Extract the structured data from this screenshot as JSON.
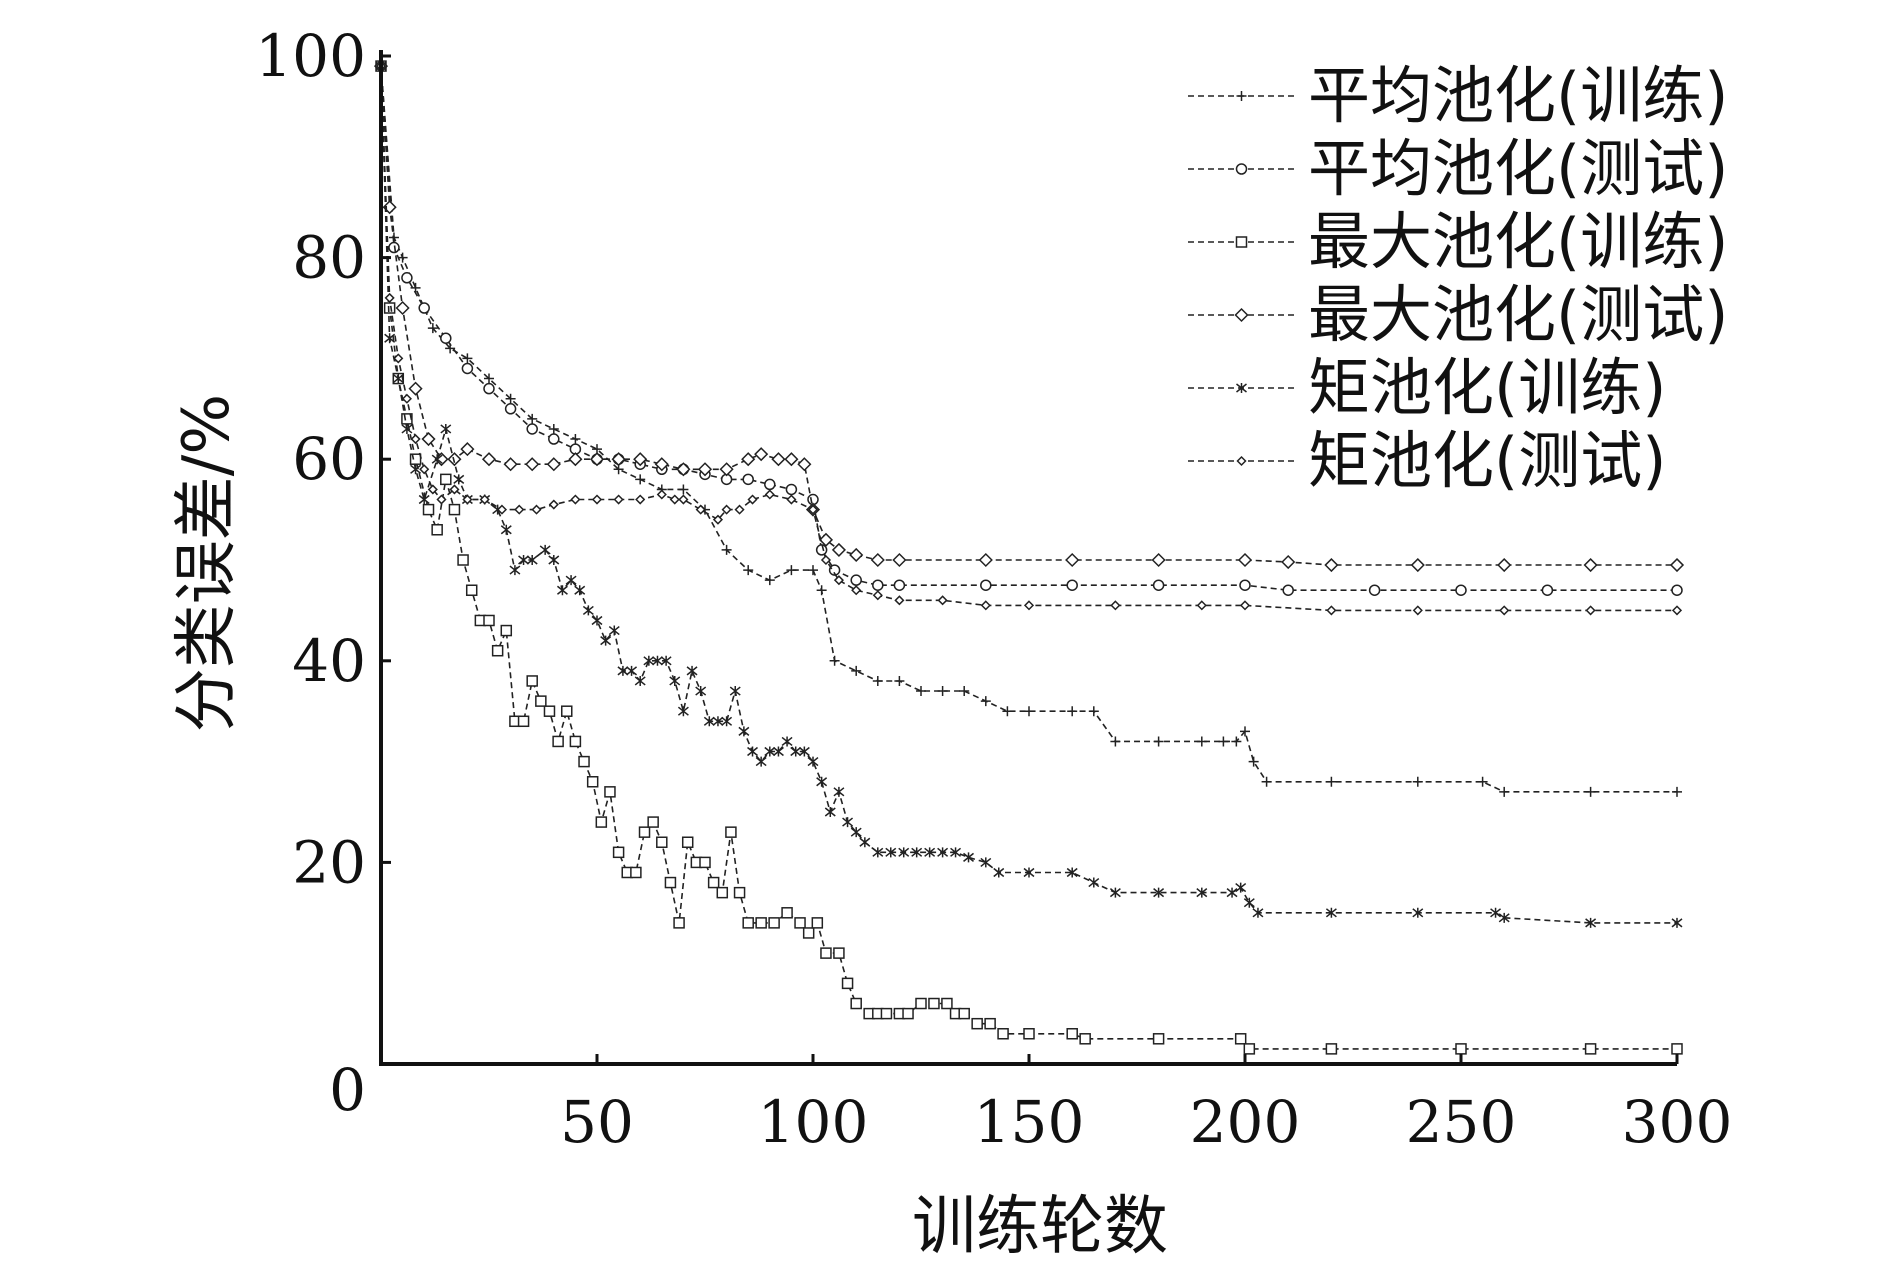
{
  "chart_data": {
    "type": "line",
    "title": "",
    "xlabel": "训练轮数",
    "ylabel": "分类误差/%",
    "xlim": [
      0,
      300
    ],
    "ylim": [
      0,
      100
    ],
    "xticks": [
      50,
      100,
      150,
      200,
      250,
      300
    ],
    "yticks": [
      0,
      20,
      40,
      60,
      80,
      100
    ],
    "xtick_labels": [
      "50",
      "100",
      "150",
      "200",
      "250",
      "300"
    ],
    "ytick_labels": [
      "0",
      "20",
      "40",
      "60",
      "80",
      "100"
    ],
    "grid": false,
    "legend_position": "top-right",
    "series": [
      {
        "name": "平均池化(训练)",
        "marker": "plus",
        "points": [
          [
            0,
            99
          ],
          [
            3,
            82
          ],
          [
            5,
            80
          ],
          [
            8,
            77
          ],
          [
            12,
            73
          ],
          [
            16,
            71
          ],
          [
            20,
            70
          ],
          [
            25,
            68
          ],
          [
            30,
            66
          ],
          [
            35,
            64
          ],
          [
            40,
            63
          ],
          [
            45,
            62
          ],
          [
            50,
            61
          ],
          [
            55,
            59
          ],
          [
            60,
            58
          ],
          [
            65,
            57
          ],
          [
            70,
            57
          ],
          [
            75,
            55
          ],
          [
            80,
            51
          ],
          [
            85,
            49
          ],
          [
            90,
            48
          ],
          [
            95,
            49
          ],
          [
            100,
            49
          ],
          [
            102,
            47
          ],
          [
            105,
            40
          ],
          [
            110,
            39
          ],
          [
            115,
            38
          ],
          [
            120,
            38
          ],
          [
            125,
            37
          ],
          [
            130,
            37
          ],
          [
            135,
            37
          ],
          [
            140,
            36
          ],
          [
            145,
            35
          ],
          [
            150,
            35
          ],
          [
            160,
            35
          ],
          [
            165,
            35
          ],
          [
            170,
            32
          ],
          [
            180,
            32
          ],
          [
            190,
            32
          ],
          [
            195,
            32
          ],
          [
            198,
            32
          ],
          [
            200,
            33
          ],
          [
            202,
            30
          ],
          [
            205,
            28
          ],
          [
            220,
            28
          ],
          [
            240,
            28
          ],
          [
            255,
            28
          ],
          [
            260,
            27
          ],
          [
            280,
            27
          ],
          [
            300,
            27
          ]
        ]
      },
      {
        "name": "平均池化(测试)",
        "marker": "circle",
        "points": [
          [
            0,
            99
          ],
          [
            3,
            81
          ],
          [
            6,
            78
          ],
          [
            10,
            75
          ],
          [
            15,
            72
          ],
          [
            20,
            69
          ],
          [
            25,
            67
          ],
          [
            30,
            65
          ],
          [
            35,
            63
          ],
          [
            40,
            62
          ],
          [
            45,
            61
          ],
          [
            50,
            60
          ],
          [
            55,
            60
          ],
          [
            60,
            59.5
          ],
          [
            65,
            59
          ],
          [
            70,
            59
          ],
          [
            75,
            58.5
          ],
          [
            80,
            58
          ],
          [
            85,
            58
          ],
          [
            90,
            57.5
          ],
          [
            95,
            57
          ],
          [
            100,
            56
          ],
          [
            102,
            51
          ],
          [
            105,
            49
          ],
          [
            110,
            48
          ],
          [
            115,
            47.5
          ],
          [
            120,
            47.5
          ],
          [
            140,
            47.5
          ],
          [
            160,
            47.5
          ],
          [
            180,
            47.5
          ],
          [
            200,
            47.5
          ],
          [
            210,
            47
          ],
          [
            230,
            47
          ],
          [
            250,
            47
          ],
          [
            270,
            47
          ],
          [
            300,
            47
          ]
        ]
      },
      {
        "name": "最大池化(训练)",
        "marker": "square",
        "points": [
          [
            0,
            99
          ],
          [
            2,
            75
          ],
          [
            4,
            68
          ],
          [
            6,
            64
          ],
          [
            8,
            60
          ],
          [
            11,
            55
          ],
          [
            13,
            53
          ],
          [
            15,
            58
          ],
          [
            17,
            55
          ],
          [
            19,
            50
          ],
          [
            21,
            47
          ],
          [
            23,
            44
          ],
          [
            25,
            44
          ],
          [
            27,
            41
          ],
          [
            29,
            43
          ],
          [
            31,
            34
          ],
          [
            33,
            34
          ],
          [
            35,
            38
          ],
          [
            37,
            36
          ],
          [
            39,
            35
          ],
          [
            41,
            32
          ],
          [
            43,
            35
          ],
          [
            45,
            32
          ],
          [
            47,
            30
          ],
          [
            49,
            28
          ],
          [
            51,
            24
          ],
          [
            53,
            27
          ],
          [
            55,
            21
          ],
          [
            57,
            19
          ],
          [
            59,
            19
          ],
          [
            61,
            23
          ],
          [
            63,
            24
          ],
          [
            65,
            22
          ],
          [
            67,
            18
          ],
          [
            69,
            14
          ],
          [
            71,
            22
          ],
          [
            73,
            20
          ],
          [
            75,
            20
          ],
          [
            77,
            18
          ],
          [
            79,
            17
          ],
          [
            81,
            23
          ],
          [
            83,
            17
          ],
          [
            85,
            14
          ],
          [
            88,
            14
          ],
          [
            91,
            14
          ],
          [
            94,
            15
          ],
          [
            97,
            14
          ],
          [
            99,
            13
          ],
          [
            101,
            14
          ],
          [
            103,
            11
          ],
          [
            106,
            11
          ],
          [
            108,
            8
          ],
          [
            110,
            6
          ],
          [
            113,
            5
          ],
          [
            115,
            5
          ],
          [
            117,
            5
          ],
          [
            120,
            5
          ],
          [
            122,
            5
          ],
          [
            125,
            6
          ],
          [
            128,
            6
          ],
          [
            131,
            6
          ],
          [
            133,
            5
          ],
          [
            135,
            5
          ],
          [
            138,
            4
          ],
          [
            141,
            4
          ],
          [
            144,
            3
          ],
          [
            150,
            3
          ],
          [
            160,
            3
          ],
          [
            163,
            2.5
          ],
          [
            180,
            2.5
          ],
          [
            199,
            2.5
          ],
          [
            201,
            1.5
          ],
          [
            220,
            1.5
          ],
          [
            250,
            1.5
          ],
          [
            280,
            1.5
          ],
          [
            300,
            1.5
          ]
        ]
      },
      {
        "name": "最大池化(测试)",
        "marker": "diamond",
        "points": [
          [
            0,
            99
          ],
          [
            2,
            85
          ],
          [
            5,
            75
          ],
          [
            8,
            67
          ],
          [
            11,
            62
          ],
          [
            14,
            60
          ],
          [
            17,
            60
          ],
          [
            20,
            61
          ],
          [
            25,
            60
          ],
          [
            30,
            59.5
          ],
          [
            35,
            59.5
          ],
          [
            40,
            59.5
          ],
          [
            45,
            60
          ],
          [
            50,
            60
          ],
          [
            55,
            60
          ],
          [
            60,
            60
          ],
          [
            65,
            59.5
          ],
          [
            70,
            59
          ],
          [
            75,
            59
          ],
          [
            80,
            59
          ],
          [
            85,
            60
          ],
          [
            88,
            60.5
          ],
          [
            92,
            60
          ],
          [
            95,
            60
          ],
          [
            98,
            59.5
          ],
          [
            100,
            55
          ],
          [
            103,
            52
          ],
          [
            106,
            51
          ],
          [
            110,
            50.5
          ],
          [
            115,
            50
          ],
          [
            120,
            50
          ],
          [
            140,
            50
          ],
          [
            160,
            50
          ],
          [
            180,
            50
          ],
          [
            200,
            50
          ],
          [
            210,
            49.8
          ],
          [
            220,
            49.5
          ],
          [
            240,
            49.5
          ],
          [
            260,
            49.5
          ],
          [
            280,
            49.5
          ],
          [
            300,
            49.5
          ]
        ]
      },
      {
        "name": "矩池化(训练)",
        "marker": "star",
        "points": [
          [
            0,
            99
          ],
          [
            2,
            72
          ],
          [
            4,
            68
          ],
          [
            6,
            63
          ],
          [
            8,
            59
          ],
          [
            10,
            56
          ],
          [
            13,
            60
          ],
          [
            15,
            63
          ],
          [
            18,
            58
          ],
          [
            20,
            56
          ],
          [
            24,
            56
          ],
          [
            27,
            55
          ],
          [
            29,
            53
          ],
          [
            31,
            49
          ],
          [
            33,
            50
          ],
          [
            35,
            50
          ],
          [
            38,
            51
          ],
          [
            40,
            50
          ],
          [
            42,
            47
          ],
          [
            44,
            48
          ],
          [
            46,
            47
          ],
          [
            48,
            45
          ],
          [
            50,
            44
          ],
          [
            52,
            42
          ],
          [
            54,
            43
          ],
          [
            56,
            39
          ],
          [
            58,
            39
          ],
          [
            60,
            38
          ],
          [
            62,
            40
          ],
          [
            64,
            40
          ],
          [
            66,
            40
          ],
          [
            68,
            38
          ],
          [
            70,
            35
          ],
          [
            72,
            39
          ],
          [
            74,
            37
          ],
          [
            76,
            34
          ],
          [
            78,
            34
          ],
          [
            80,
            34
          ],
          [
            82,
            37
          ],
          [
            84,
            33
          ],
          [
            86,
            31
          ],
          [
            88,
            30
          ],
          [
            90,
            31
          ],
          [
            92,
            31
          ],
          [
            94,
            32
          ],
          [
            96,
            31
          ],
          [
            98,
            31
          ],
          [
            100,
            30
          ],
          [
            102,
            28
          ],
          [
            104,
            25
          ],
          [
            106,
            27
          ],
          [
            108,
            24
          ],
          [
            110,
            23
          ],
          [
            112,
            22
          ],
          [
            115,
            21
          ],
          [
            118,
            21
          ],
          [
            121,
            21
          ],
          [
            124,
            21
          ],
          [
            127,
            21
          ],
          [
            130,
            21
          ],
          [
            133,
            21
          ],
          [
            136,
            20.5
          ],
          [
            140,
            20
          ],
          [
            143,
            19
          ],
          [
            150,
            19
          ],
          [
            160,
            19
          ],
          [
            165,
            18
          ],
          [
            170,
            17
          ],
          [
            180,
            17
          ],
          [
            190,
            17
          ],
          [
            197,
            17
          ],
          [
            199,
            17.5
          ],
          [
            201,
            16
          ],
          [
            203,
            15
          ],
          [
            220,
            15
          ],
          [
            240,
            15
          ],
          [
            258,
            15
          ],
          [
            260,
            14.5
          ],
          [
            280,
            14
          ],
          [
            300,
            14
          ]
        ]
      },
      {
        "name": "矩池化(测试)",
        "marker": "small-diamond",
        "points": [
          [
            0,
            99
          ],
          [
            2,
            76
          ],
          [
            4,
            70
          ],
          [
            6,
            66
          ],
          [
            8,
            62
          ],
          [
            10,
            59
          ],
          [
            12,
            57
          ],
          [
            14,
            56
          ],
          [
            17,
            57
          ],
          [
            20,
            56
          ],
          [
            24,
            56
          ],
          [
            28,
            55
          ],
          [
            32,
            55
          ],
          [
            36,
            55
          ],
          [
            40,
            55.5
          ],
          [
            45,
            56
          ],
          [
            50,
            56
          ],
          [
            55,
            56
          ],
          [
            60,
            56
          ],
          [
            65,
            56.5
          ],
          [
            68,
            56
          ],
          [
            70,
            56
          ],
          [
            74,
            55
          ],
          [
            78,
            54
          ],
          [
            80,
            55
          ],
          [
            83,
            55
          ],
          [
            86,
            56
          ],
          [
            90,
            56.5
          ],
          [
            95,
            56
          ],
          [
            100,
            55
          ],
          [
            103,
            50
          ],
          [
            106,
            48
          ],
          [
            110,
            47
          ],
          [
            115,
            46.5
          ],
          [
            120,
            46
          ],
          [
            130,
            46
          ],
          [
            140,
            45.5
          ],
          [
            150,
            45.5
          ],
          [
            170,
            45.5
          ],
          [
            190,
            45.5
          ],
          [
            200,
            45.5
          ],
          [
            220,
            45
          ],
          [
            240,
            45
          ],
          [
            260,
            45
          ],
          [
            280,
            45
          ],
          [
            300,
            45
          ]
        ]
      }
    ]
  }
}
